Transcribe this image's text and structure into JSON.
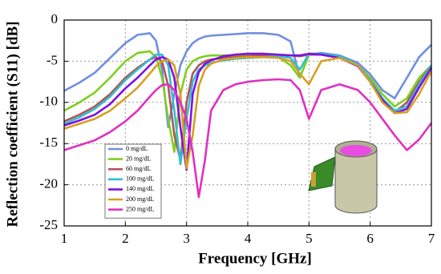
{
  "chart_data": {
    "type": "line",
    "x_label": "Frequency [GHz]",
    "y_label": "Reflection coefficient (S11) [dB]",
    "x": [
      1,
      1.25,
      1.5,
      1.75,
      2,
      2.2,
      2.4,
      2.5,
      2.6,
      2.7,
      2.8,
      2.9,
      3.0,
      3.1,
      3.2,
      3.3,
      3.4,
      3.6,
      3.8,
      4,
      4.25,
      4.5,
      4.7,
      4.85,
      5,
      5.2,
      5.5,
      5.8,
      6,
      6.2,
      6.4,
      6.6,
      6.8,
      7
    ],
    "series": [
      {
        "name": "0 mg/dL",
        "color": "#6f8fe0",
        "values": [
          -8.6,
          -7.6,
          -6.4,
          -4.6,
          -2.8,
          -1.8,
          -1.6,
          -2.5,
          -6,
          -13,
          -9,
          -5.5,
          -3.8,
          -2.8,
          -2.3,
          -2,
          -1.9,
          -1.8,
          -1.7,
          -1.6,
          -1.6,
          -1.8,
          -2.6,
          -7,
          -4.2,
          -4,
          -4.3,
          -5.2,
          -6.6,
          -8.5,
          -9.5,
          -7,
          -4.5,
          -3
        ]
      },
      {
        "name": "20 mg/dL",
        "color": "#7fcf20",
        "values": [
          -11,
          -10,
          -8.8,
          -7,
          -5,
          -4,
          -3.8,
          -4.5,
          -7,
          -12,
          -16,
          -9,
          -6,
          -5,
          -4.6,
          -4.4,
          -4.3,
          -4.3,
          -4.3,
          -4.3,
          -4.3,
          -4.5,
          -5.5,
          -7,
          -4.2,
          -4.2,
          -4.5,
          -5.5,
          -7,
          -9,
          -10.5,
          -9.5,
          -7,
          -5.5
        ]
      },
      {
        "name": "60 mg/dL",
        "color": "#b05458",
        "values": [
          -12.3,
          -11.5,
          -10.5,
          -9,
          -7,
          -5.8,
          -4.8,
          -4.5,
          -5,
          -8,
          -14,
          -17,
          -10,
          -6.5,
          -5.5,
          -5,
          -4.8,
          -4.6,
          -4.5,
          -4.4,
          -4.3,
          -4.3,
          -4.3,
          -4.4,
          -4.2,
          -4.2,
          -4.5,
          -5.5,
          -7.5,
          -9.8,
          -11.2,
          -10,
          -7.5,
          -5.5
        ]
      },
      {
        "name": "100 mg/dL",
        "color": "#30bfd0",
        "values": [
          -12.6,
          -11.8,
          -10.8,
          -9.3,
          -7.3,
          -6,
          -4.8,
          -4.2,
          -4.2,
          -5.5,
          -11,
          -17.5,
          -12,
          -7.5,
          -6,
          -5.5,
          -5.2,
          -4.9,
          -4.7,
          -4.6,
          -4.5,
          -4.4,
          -4.6,
          -6,
          -4.1,
          -4.1,
          -4.4,
          -5.4,
          -7.3,
          -9.5,
          -11,
          -10.5,
          -7.8,
          -5.5
        ]
      },
      {
        "name": "140 mg/dL",
        "color": "#8010e0",
        "values": [
          -12.8,
          -12.2,
          -11.5,
          -10.2,
          -8.3,
          -7,
          -5.5,
          -4.8,
          -4.5,
          -4.8,
          -7,
          -13,
          -18.2,
          -9,
          -6.3,
          -5.3,
          -4.9,
          -4.4,
          -4.2,
          -4.1,
          -4.1,
          -4.2,
          -4.3,
          -4.3,
          -4.1,
          -4.2,
          -4.6,
          -5.6,
          -7.5,
          -9.7,
          -11.3,
          -10.8,
          -8.2,
          -5.8
        ]
      },
      {
        "name": "200 mg/dL",
        "color": "#d6a020",
        "values": [
          -13.2,
          -12.6,
          -12,
          -11,
          -9.5,
          -8.2,
          -6.5,
          -5.6,
          -5,
          -4.8,
          -5.5,
          -9,
          -18,
          -14,
          -8,
          -6,
          -5.3,
          -4.8,
          -4.6,
          -4.5,
          -4.5,
          -4.6,
          -5,
          -6.5,
          -7.8,
          -5,
          -4.6,
          -5.5,
          -7.5,
          -10,
          -11.3,
          -11.2,
          -9,
          -6.2
        ]
      },
      {
        "name": "250 mg/dL",
        "color": "#e030c0",
        "values": [
          -15.8,
          -15.2,
          -14.6,
          -13.6,
          -12.3,
          -11,
          -9.3,
          -8.5,
          -7.9,
          -7.8,
          -8.5,
          -10,
          -12,
          -16,
          -21.5,
          -17,
          -11,
          -8.5,
          -7.8,
          -7.5,
          -7.3,
          -7.2,
          -7.3,
          -8.5,
          -12,
          -8.5,
          -7.8,
          -8.5,
          -10,
          -12,
          -14,
          -15.8,
          -14.5,
          -12.5
        ]
      }
    ],
    "xlim": [
      1,
      7
    ],
    "xticks": [
      1,
      2,
      3,
      4,
      5,
      6,
      7
    ],
    "ylim": [
      -25,
      0
    ],
    "yticks": [
      -25,
      -20,
      -15,
      -10,
      -5,
      0
    ],
    "grid": true,
    "legend": "lower-left"
  }
}
